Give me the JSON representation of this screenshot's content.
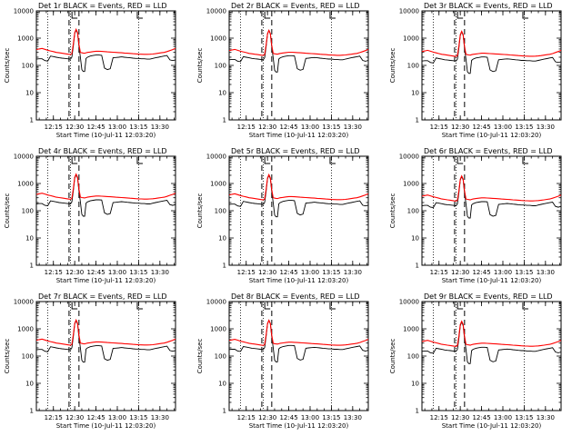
{
  "chart_data": [
    {
      "type": "line",
      "title": "Det 1r BLACK = Events, RED = LLD",
      "xlabel": "Start Time (10-Jul-11 12:03:20)",
      "ylabel": "Counts/sec",
      "yscale": "log",
      "ylim": [
        1,
        10000
      ],
      "yticks": [
        "1",
        "10",
        "100",
        "1000",
        "10000"
      ],
      "xticks": [
        "12:15",
        "12:30",
        "12:45",
        "13:00",
        "13:15",
        "13:30"
      ],
      "xlim_minutes_since_start": [
        0,
        98
      ],
      "series": [
        {
          "name": "Events",
          "color": "#000000",
          "values_note": "baseline ~150, peak ~2000 at 12:30, drops ~60-80 near 12:34 and 12:48"
        },
        {
          "name": "LLD",
          "color": "#ff0000",
          "values_note": "~300-450, peak ~2000 at 12:30"
        }
      ],
      "vlines_dotted": [
        "12:11",
        "12:27",
        "13:15"
      ],
      "vlines_dashed": [
        "12:26",
        "12:33"
      ],
      "markers": [
        {
          "label": "S",
          "x": "12:30"
        },
        {
          "label": "E",
          "x": "13:16"
        }
      ]
    },
    {
      "type": "line",
      "title": "Det 2r BLACK = Events, RED = LLD",
      "xlabel": "Start Time (10-Jul-11 12:03:20)",
      "ylabel": "Counts/sec",
      "yscale": "log",
      "ylim": [
        1,
        10000
      ],
      "yticks": [
        "1",
        "10",
        "100",
        "1000",
        "10000"
      ],
      "xticks": [
        "12:15",
        "12:30",
        "12:45",
        "13:00",
        "13:15",
        "13:30"
      ]
    },
    {
      "type": "line",
      "title": "Det 3r BLACK = Events, RED = LLD",
      "xlabel": "Start Time (10-Jul-11 12:03:20)",
      "ylabel": "Counts/sec",
      "yscale": "log",
      "ylim": [
        1,
        10000
      ],
      "yticks": [
        "1",
        "10",
        "100",
        "1000",
        "10000"
      ],
      "xticks": [
        "12:15",
        "12:30",
        "12:45",
        "13:00",
        "13:15",
        "13:30"
      ]
    },
    {
      "type": "line",
      "title": "Det 4r BLACK = Events, RED = LLD",
      "xlabel": "Start Time (10-Jul-11 12:03:20)",
      "ylabel": "Counts/sec",
      "yscale": "log",
      "ylim": [
        1,
        10000
      ],
      "yticks": [
        "1",
        "10",
        "100",
        "1000",
        "10000"
      ],
      "xticks": [
        "12:15",
        "12:30",
        "12:45",
        "13:00",
        "13:15",
        "13:30"
      ]
    },
    {
      "type": "line",
      "title": "Det 5r BLACK = Events, RED = LLD",
      "xlabel": "Start Time (10-Jul-11 12:03:20)",
      "ylabel": "Counts/sec",
      "yscale": "log",
      "ylim": [
        1,
        10000
      ],
      "yticks": [
        "1",
        "10",
        "100",
        "1000",
        "10000"
      ],
      "xticks": [
        "12:15",
        "12:30",
        "12:45",
        "13:00",
        "13:15",
        "13:30"
      ]
    },
    {
      "type": "line",
      "title": "Det 6r BLACK = Events, RED = LLD",
      "xlabel": "Start Time (10-Jul-11 12:03:20)",
      "ylabel": "Counts/sec",
      "yscale": "log",
      "ylim": [
        1,
        10000
      ],
      "yticks": [
        "1",
        "10",
        "100",
        "1000",
        "10000"
      ],
      "xticks": [
        "12:15",
        "12:30",
        "12:45",
        "13:00",
        "13:15",
        "13:30"
      ]
    },
    {
      "type": "line",
      "title": "Det 7r BLACK = Events, RED = LLD",
      "xlabel": "Start Time (10-Jul-11 12:03:20)",
      "ylabel": "Counts/sec",
      "yscale": "log",
      "ylim": [
        1,
        10000
      ],
      "yticks": [
        "1",
        "10",
        "100",
        "1000",
        "10000"
      ],
      "xticks": [
        "12:15",
        "12:30",
        "12:45",
        "13:00",
        "13:15",
        "13:30"
      ]
    },
    {
      "type": "line",
      "title": "Det 8r BLACK = Events, RED = LLD",
      "xlabel": "Start Time (10-Jul-11 12:03:20)",
      "ylabel": "Counts/sec",
      "yscale": "log",
      "ylim": [
        1,
        10000
      ],
      "yticks": [
        "1",
        "10",
        "100",
        "1000",
        "10000"
      ],
      "xticks": [
        "12:15",
        "12:30",
        "12:45",
        "13:00",
        "13:15",
        "13:30"
      ]
    },
    {
      "type": "line",
      "title": "Det 9r BLACK = Events, RED = LLD",
      "xlabel": "Start Time (10-Jul-11 12:03:20)",
      "ylabel": "Counts/sec",
      "yscale": "log",
      "ylim": [
        1,
        10000
      ],
      "yticks": [
        "1",
        "10",
        "100",
        "1000",
        "10000"
      ],
      "xticks": [
        "12:15",
        "12:30",
        "12:45",
        "13:00",
        "13:15",
        "13:30"
      ]
    }
  ],
  "series_samples": {
    "x_minutes": [
      0,
      2,
      4,
      6,
      8,
      10,
      12,
      14,
      16,
      18,
      20,
      22,
      24,
      25,
      26,
      27,
      28,
      29,
      30,
      31,
      32,
      33,
      34,
      35,
      36,
      38,
      40,
      42,
      44,
      46,
      48,
      50,
      52,
      54,
      56,
      58,
      60,
      62,
      64,
      66,
      68,
      70,
      72,
      74,
      76,
      78,
      80,
      82,
      84,
      86,
      88,
      90,
      92,
      94,
      96,
      98
    ],
    "events": [
      170,
      175,
      175,
      150,
      145,
      220,
      210,
      200,
      190,
      185,
      180,
      175,
      170,
      200,
      500,
      1500,
      2000,
      1500,
      500,
      200,
      70,
      60,
      60,
      180,
      200,
      220,
      230,
      240,
      240,
      235,
      80,
      70,
      75,
      190,
      195,
      200,
      205,
      200,
      195,
      190,
      185,
      180,
      180,
      175,
      175,
      170,
      170,
      180,
      190,
      200,
      210,
      220,
      230,
      160,
      150,
      160
    ],
    "lld": [
      380,
      400,
      420,
      390,
      360,
      340,
      320,
      300,
      290,
      280,
      270,
      260,
      250,
      270,
      600,
      1600,
      2100,
      1600,
      600,
      300,
      290,
      285,
      280,
      290,
      300,
      310,
      320,
      330,
      330,
      325,
      320,
      315,
      310,
      305,
      300,
      295,
      290,
      285,
      280,
      275,
      270,
      265,
      260,
      258,
      255,
      255,
      258,
      262,
      270,
      280,
      290,
      300,
      320,
      350,
      380,
      420
    ]
  },
  "colors": {
    "events": "#000000",
    "lld": "#ff0000",
    "axes": "#000000",
    "background": "#ffffff"
  }
}
